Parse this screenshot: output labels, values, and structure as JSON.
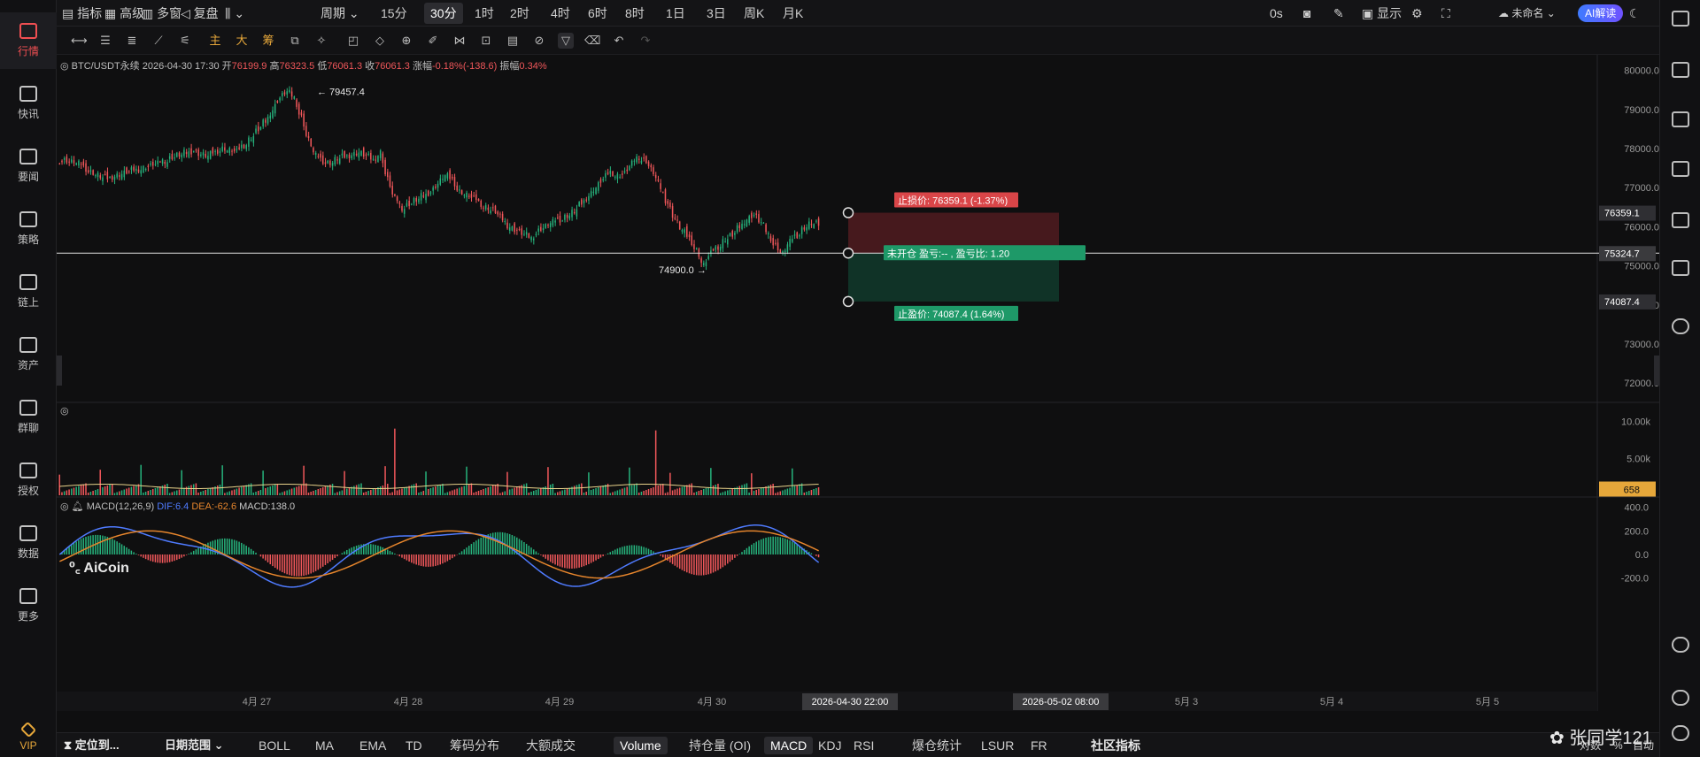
{
  "nav": [
    {
      "label": "行情",
      "icon": "market-icon",
      "active": true
    },
    {
      "label": "快讯",
      "icon": "flash-news-icon"
    },
    {
      "label": "要闻",
      "icon": "news-icon"
    },
    {
      "label": "策略",
      "icon": "robot-icon"
    },
    {
      "label": "链上",
      "icon": "chain-icon"
    },
    {
      "label": "资产",
      "icon": "wallet-icon"
    },
    {
      "label": "群聊",
      "icon": "chat-icon"
    },
    {
      "label": "授权",
      "icon": "key-icon"
    },
    {
      "label": "数据",
      "icon": "data-icon"
    },
    {
      "label": "更多",
      "icon": "grid-icon"
    },
    {
      "label": "VIP",
      "icon": "diamond-icon"
    }
  ],
  "toolbar": {
    "indicator": "指标",
    "advanced": "高级",
    "multi_window": "多窗",
    "replay": "复盘",
    "period": "周期",
    "intervals": [
      "15分",
      "30分",
      "1时",
      "2时",
      "4时",
      "6时",
      "8时",
      "1日",
      "3日",
      "周K",
      "月K"
    ],
    "active_interval": "30分",
    "latency": "0s",
    "display": "显示",
    "account": "未命名",
    "ai": "AI解读"
  },
  "legend": {
    "symbol": "BTC/USDT永续",
    "datetime": "2026-04-30 17:30",
    "open_label": "开",
    "open": "76199.9",
    "high_label": "高",
    "high": "76323.5",
    "low_label": "低",
    "low": "76061.3",
    "close_label": "收",
    "close": "76061.3",
    "change_label": "涨幅",
    "change": "-0.18%(-138.6)",
    "amp_label": "振幅",
    "amp": "0.34%"
  },
  "annotations": {
    "high_marker": "← 79457.4",
    "low_marker": "74900.0 →",
    "stop_loss": "止损价: 76359.1 (-1.37%)",
    "position": "未开仓  盈亏:-- , 盈亏比: 1.20",
    "take_profit": "止盈价: 74087.4 (1.64%)"
  },
  "price_axis": {
    "ticks": [
      "80000.0",
      "79000.0",
      "78000.0",
      "77000.0",
      "76000.0",
      "75000.0",
      "74000.0",
      "73000.0",
      "72000.0"
    ],
    "tags": [
      "76359.1",
      "75324.7",
      "74087.4"
    ]
  },
  "volume_axis": {
    "ticks": [
      "10.00k",
      "5.00k"
    ],
    "tag": "658"
  },
  "macd": {
    "label": "MACD(12,26,9)",
    "dif": "DIF:6.4",
    "dea": "DEA:-62.6",
    "macd": "MACD:138.0",
    "ticks": [
      "400.0",
      "200.0",
      "0.0",
      "-200.0"
    ]
  },
  "brand": "AiCoin",
  "time_axis": {
    "labels": [
      "4月 27",
      "4月 28",
      "4月 29",
      "4月 30",
      "5月",
      "5月 3",
      "5月 4",
      "5月 5"
    ],
    "cursor_a": "2026-04-30 22:00",
    "cursor_b": "2026-05-02 08:00"
  },
  "bottombar": {
    "locate": "定位到...",
    "range": "日期范围",
    "items": [
      "BOLL",
      "MA",
      "EMA",
      "TD",
      "筹码分布",
      "大额成交",
      "Volume",
      "持仓量 (OI)",
      "MACD",
      "KDJ",
      "RSI",
      "爆仓统计",
      "LSUR",
      "FR",
      "社区指标"
    ],
    "active": [
      "Volume",
      "MACD"
    ],
    "right": [
      "对数",
      "%",
      "自动"
    ]
  },
  "watermark": "张同学121",
  "colors": {
    "up": "#26b27c",
    "down": "#f0575a",
    "accent": "#e6a73a",
    "ai": "#5a68ff"
  },
  "chart_data": {
    "type": "candlestick",
    "symbol": "BTC/USDT永续",
    "interval": "30分",
    "price_range": [
      71800,
      80400
    ],
    "ohlc_close_path": [
      77700,
      77650,
      77600,
      77500,
      77400,
      77300,
      77250,
      77300,
      77350,
      77400,
      77450,
      77500,
      77550,
      77600,
      77700,
      77800,
      77850,
      77900,
      77950,
      77850,
      77800,
      77900,
      78000,
      77950,
      77900,
      78100,
      78300,
      78500,
      78700,
      79000,
      79300,
      79450,
      79300,
      78800,
      78200,
      77800,
      77700,
      77650,
      77750,
      77800,
      77850,
      77900,
      77800,
      77700,
      77900,
      77200,
      76700,
      76500,
      76600,
      76700,
      76800,
      76900,
      77100,
      77300,
      77200,
      76900,
      76800,
      76700,
      76600,
      76500,
      76400,
      76200,
      76000,
      75900,
      75800,
      75700,
      75900,
      76000,
      76100,
      76200,
      76300,
      76400,
      76600,
      76800,
      77000,
      77200,
      77400,
      77300,
      77350,
      77600,
      77800,
      77700,
      77400,
      77000,
      76600,
      76200,
      75900,
      75700,
      75400,
      75000,
      75300,
      75500,
      75700,
      75800,
      76000,
      76200,
      76300,
      76100,
      75800,
      75500,
      75300,
      75600,
      75800,
      76000,
      76100,
      76061
    ],
    "high": 79457.4,
    "low": 74900.0,
    "last": 76061.3,
    "stop_loss": 76359.1,
    "entry": 75324.7,
    "take_profit": 74087.4,
    "volume_axis_ticks": [
      "10.00k",
      "5.00k"
    ],
    "volume_last": 658,
    "macd_axis_ticks": [
      "400.0",
      "200.0",
      "0.0",
      "-200.0"
    ]
  }
}
